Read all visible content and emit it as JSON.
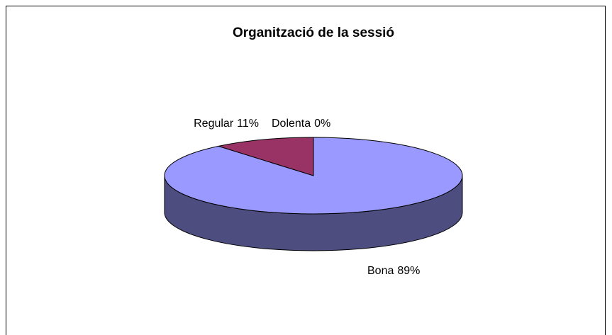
{
  "chart_data": {
    "type": "pie",
    "title": "Organització de la sessió",
    "categories": [
      "Bona",
      "Regular",
      "Dolenta"
    ],
    "values": [
      89,
      11,
      0
    ],
    "value_labels": [
      "89%",
      "11%",
      "0%"
    ],
    "colors": [
      "#9999ff",
      "#993366",
      "#ffffcc"
    ]
  }
}
